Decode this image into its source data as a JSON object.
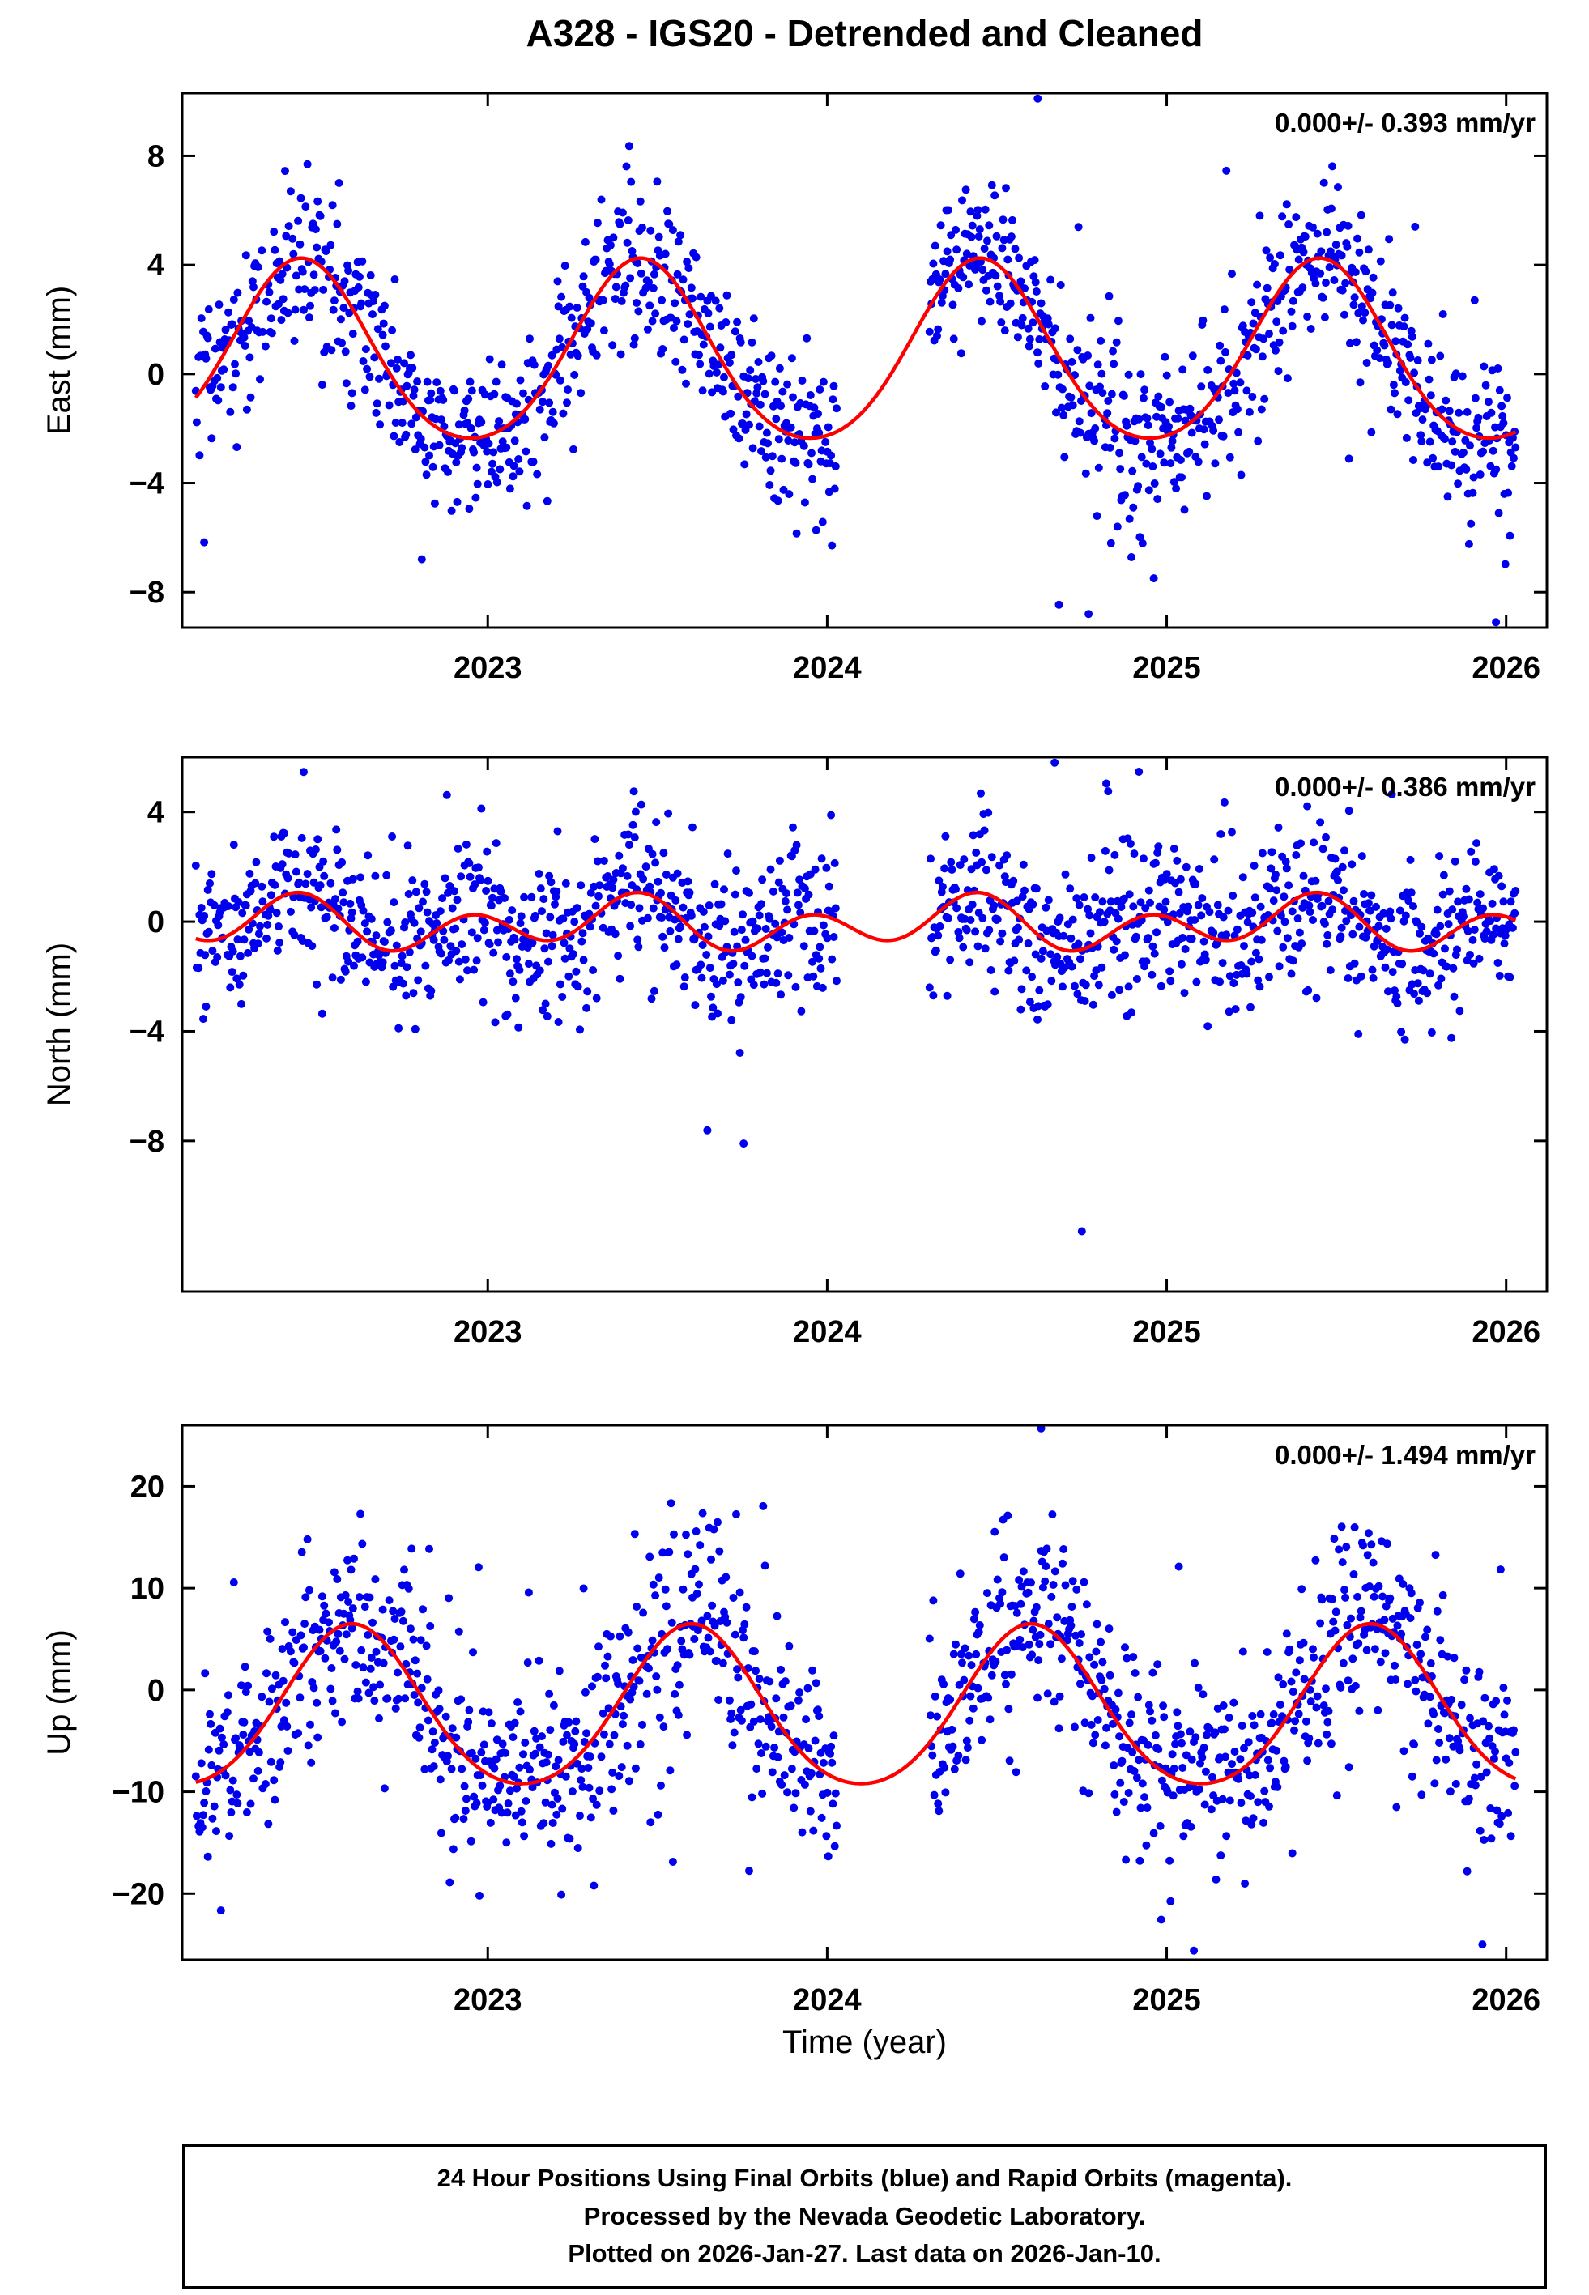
{
  "title": "A328 - IGS20 - Detrended and Cleaned",
  "xlabel": "Time (year)",
  "caption": [
    "24 Hour Positions Using Final Orbits (blue) and Rapid Orbits (magenta).",
    "Processed by the Nevada Geodetic Laboratory.",
    "Plotted on 2026-Jan-27. Last data on 2026-Jan-10."
  ],
  "colors": {
    "points": "#0000ee",
    "curve": "#ff0000",
    "frame": "#000000"
  },
  "sampling": {
    "start": 2022.14,
    "end": 2026.03,
    "per_year": 365,
    "keep_prob": 0.96,
    "gaps": [
      [
        2024.03,
        2024.3
      ]
    ],
    "seed": 7
  },
  "chart_data": [
    {
      "id": "east",
      "type": "scatter",
      "ylabel": "East (mm)",
      "annotation": "0.000+/- 0.393 mm/yr",
      "xlim": [
        2022.1,
        2026.12
      ],
      "xticks": [
        2023,
        2024,
        2025,
        2026
      ],
      "ylim": [
        -9.3,
        10.3
      ],
      "yticks": [
        -8,
        -4,
        0,
        4,
        8
      ],
      "seasonal_model": {
        "mean": 0.6,
        "annual_amp": 3.3,
        "annual_peak": 0.45,
        "semiannual_amp": 0.35,
        "semiannual_peak": 0.45
      },
      "noise_sd": 1.35,
      "seed": 101,
      "outliers": [
        [
          2024.62,
          10.1
        ],
        [
          2024.77,
          -8.8
        ],
        [
          2025.97,
          -9.1
        ]
      ]
    },
    {
      "id": "north",
      "type": "scatter",
      "ylabel": "North (mm)",
      "annotation": "0.000+/- 0.386 mm/yr",
      "xlim": [
        2022.1,
        2026.12
      ],
      "xticks": [
        2023,
        2024,
        2025,
        2026
      ],
      "ylim": [
        -13.5,
        6.0
      ],
      "yticks": [
        -8,
        -4,
        0,
        4
      ],
      "seasonal_model": {
        "mean": -0.1,
        "annual_amp": 0.45,
        "annual_peak": 0.38,
        "semiannual_amp": 0.75,
        "semiannual_peak": 0.45
      },
      "noise_sd": 1.35,
      "seed": 202,
      "outliers": [
        [
          2024.67,
          5.8
        ],
        [
          2024.75,
          -11.3
        ]
      ]
    },
    {
      "id": "up",
      "type": "scatter",
      "ylabel": "Up (mm)",
      "annotation": "0.000+/- 1.494 mm/yr",
      "xlim": [
        2022.1,
        2026.12
      ],
      "xticks": [
        2023,
        2024,
        2025,
        2026
      ],
      "ylim": [
        -26.5,
        26.0
      ],
      "yticks": [
        -20,
        -10,
        0,
        10,
        20
      ],
      "seasonal_model": {
        "mean": -2.15,
        "annual_amp": 7.85,
        "annual_peak": 0.6,
        "semiannual_amp": 0.8,
        "semiannual_peak": 0.6
      },
      "noise_sd": 4.6,
      "seed": 303,
      "outliers": [
        [
          2024.63,
          25.7
        ],
        [
          2025.08,
          -25.6
        ],
        [
          2025.93,
          -25.0
        ]
      ]
    }
  ]
}
